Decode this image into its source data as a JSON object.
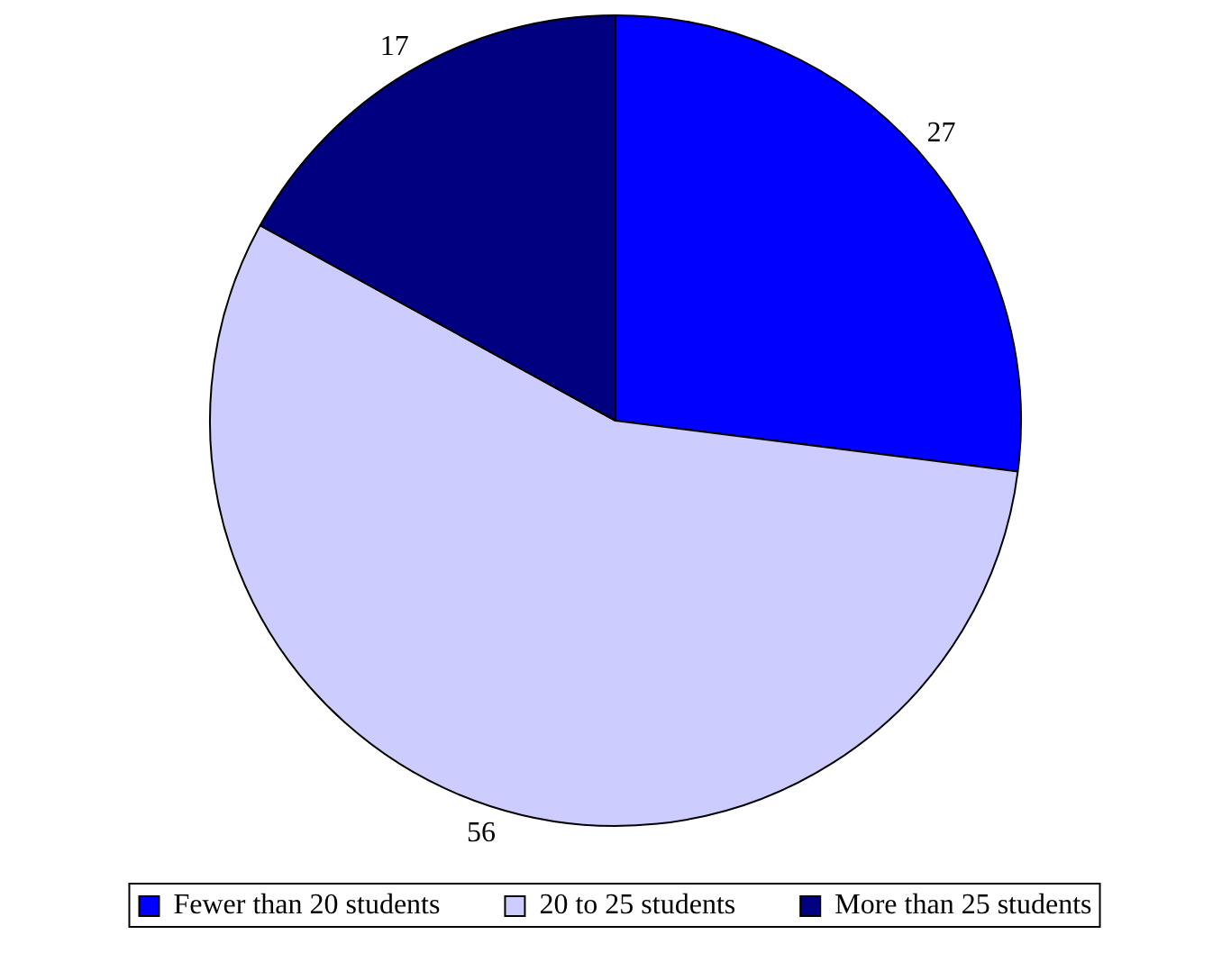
{
  "chart_data": {
    "type": "pie",
    "categories": [
      "Fewer than 20 students",
      "20 to 25 students",
      "More than 25 students"
    ],
    "values": [
      27,
      56,
      17
    ],
    "colors": [
      "#0000ff",
      "#ccccff",
      "#000080"
    ],
    "data_labels": true,
    "legend": "bottom"
  }
}
